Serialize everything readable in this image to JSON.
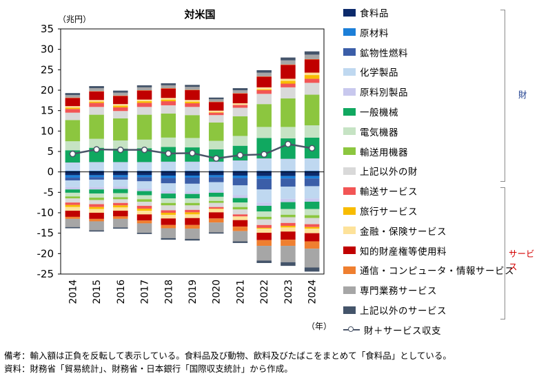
{
  "chart_data": {
    "type": "bar",
    "title": "対米国",
    "y_unit": "（兆円）",
    "x_unit": "（年）",
    "ylim": [
      -25,
      35
    ],
    "yticks": [
      35,
      30,
      25,
      20,
      15,
      10,
      5,
      0,
      -5,
      -10,
      -15,
      -20,
      -25
    ],
    "categories": [
      "2014",
      "2015",
      "2016",
      "2017",
      "2018",
      "2019",
      "2020",
      "2021",
      "2022",
      "2023",
      "2024"
    ],
    "goods_label": "財",
    "services_label": "サービス",
    "goods_color": "#1f3f8f",
    "services_color": "#d40000",
    "series": [
      {
        "name": "食料品",
        "color": "#0c2a6b",
        "group": "goods",
        "values": [
          0.1,
          0.1,
          0.1,
          0.1,
          0.1,
          0.1,
          0.1,
          0.1,
          0.1,
          0.1,
          0.1
        ],
        "neg": [
          -0.8,
          -0.8,
          -0.8,
          -0.8,
          -0.9,
          -0.9,
          -0.8,
          -0.9,
          -1.0,
          -1.0,
          -1.0
        ]
      },
      {
        "name": "原材料",
        "color": "#1c7fd8",
        "group": "goods",
        "values": [
          0.1,
          0.1,
          0.1,
          0.1,
          0.1,
          0.1,
          0.1,
          0.1,
          0.1,
          0.1,
          0.1
        ],
        "neg": [
          -0.6,
          -0.5,
          -0.5,
          -0.5,
          -0.6,
          -0.5,
          -0.5,
          -0.6,
          -0.7,
          -0.6,
          -0.6
        ]
      },
      {
        "name": "鉱物性燃料",
        "color": "#3b5ea8",
        "group": "goods",
        "values": [
          0.1,
          0.1,
          0.1,
          0.1,
          0.1,
          0.1,
          0.1,
          0.1,
          0.1,
          0.1,
          0.1
        ],
        "neg": [
          -0.7,
          -0.6,
          -0.6,
          -1.0,
          -1.3,
          -1.5,
          -1.2,
          -1.8,
          -2.6,
          -2.0,
          -1.9
        ]
      },
      {
        "name": "化学製品",
        "color": "#bfd8f0",
        "group": "goods",
        "values": [
          1.8,
          1.9,
          1.9,
          1.9,
          2.0,
          2.0,
          2.0,
          2.3,
          2.8,
          2.7,
          2.8
        ],
        "neg": [
          -1.6,
          -1.8,
          -1.7,
          -1.8,
          -1.9,
          -1.9,
          -2.0,
          -2.4,
          -3.2,
          -3.0,
          -3.0
        ]
      },
      {
        "name": "原料別製品",
        "color": "#c8c8ee",
        "group": "goods",
        "values": [
          0.2,
          0.2,
          0.2,
          0.2,
          0.2,
          0.2,
          0.2,
          0.2,
          0.2,
          0.2,
          0.2
        ],
        "neg": [
          -0.6,
          -0.6,
          -0.6,
          -0.6,
          -0.6,
          -0.6,
          -0.6,
          -0.7,
          -0.8,
          -0.8,
          -0.8
        ]
      },
      {
        "name": "一般機械",
        "color": "#10a860",
        "group": "goods",
        "values": [
          3.0,
          3.5,
          3.3,
          3.4,
          3.6,
          3.5,
          3.0,
          3.6,
          5.0,
          5.0,
          5.1
        ],
        "neg": [
          -0.8,
          -1.0,
          -1.0,
          -1.0,
          -1.2,
          -1.1,
          -1.0,
          -1.1,
          -1.4,
          -1.7,
          -1.8
        ]
      },
      {
        "name": "電気機器",
        "color": "#c6e3c4",
        "group": "goods",
        "values": [
          2.2,
          2.2,
          2.0,
          2.1,
          2.3,
          2.3,
          2.1,
          2.4,
          2.7,
          2.8,
          3.0
        ],
        "neg": [
          -0.9,
          -1.0,
          -1.0,
          -1.0,
          -1.1,
          -1.1,
          -1.0,
          -1.1,
          -1.3,
          -1.4,
          -1.5
        ]
      },
      {
        "name": "輸送用機器",
        "color": "#8cc63f",
        "group": "goods",
        "values": [
          5.2,
          5.9,
          5.4,
          6.1,
          5.9,
          5.6,
          4.5,
          4.8,
          5.6,
          7.0,
          7.5
        ],
        "neg": [
          -0.5,
          -0.6,
          -0.5,
          -0.6,
          -0.6,
          -0.6,
          -0.5,
          -0.6,
          -0.6,
          -0.6,
          -0.7
        ]
      },
      {
        "name": "上記以外の財",
        "color": "#d9d9d9",
        "group": "goods",
        "values": [
          1.8,
          1.9,
          1.8,
          1.9,
          2.0,
          2.0,
          1.8,
          2.1,
          2.5,
          2.7,
          2.9
        ],
        "neg": [
          -1.0,
          -1.0,
          -0.9,
          -1.0,
          -1.2,
          -1.1,
          -1.0,
          -1.2,
          -1.4,
          -1.4,
          -1.5
        ]
      },
      {
        "name": "輸送サービス",
        "color": "#f25555",
        "group": "services",
        "values": [
          0.9,
          1.0,
          0.9,
          1.0,
          1.0,
          0.9,
          0.6,
          0.7,
          0.9,
          0.9,
          1.0
        ],
        "neg": [
          -0.6,
          -0.7,
          -0.6,
          -0.7,
          -0.6,
          -0.6,
          -0.4,
          -0.5,
          -0.7,
          -0.7,
          -0.7
        ]
      },
      {
        "name": "旅行サービス",
        "color": "#f8bc00",
        "group": "services",
        "values": [
          0.3,
          0.3,
          0.4,
          0.4,
          0.4,
          0.4,
          0.1,
          0.0,
          0.2,
          0.7,
          0.9
        ],
        "neg": [
          -0.5,
          -0.5,
          -0.5,
          -0.5,
          -0.5,
          -0.5,
          -0.1,
          -0.0,
          -0.2,
          -0.4,
          -0.4
        ]
      },
      {
        "name": "金融・保険サービス",
        "color": "#fde29a",
        "group": "services",
        "values": [
          0.4,
          0.4,
          0.4,
          0.4,
          0.4,
          0.4,
          0.4,
          0.4,
          0.5,
          0.5,
          0.6
        ],
        "neg": [
          -0.9,
          -0.9,
          -0.8,
          -0.9,
          -0.9,
          -0.9,
          -0.8,
          -0.9,
          -1.0,
          -1.0,
          -1.1
        ]
      },
      {
        "name": "知的財産権等使用料",
        "color": "#c00000",
        "group": "services",
        "values": [
          2.0,
          2.1,
          2.0,
          2.2,
          2.3,
          2.4,
          2.1,
          2.4,
          2.6,
          3.4,
          3.2
        ],
        "neg": [
          -1.5,
          -1.5,
          -1.4,
          -1.5,
          -1.6,
          -1.7,
          -1.5,
          -1.6,
          -1.8,
          -2.0,
          -2.0
        ]
      },
      {
        "name": "通信・コンピュータ・情報サービス",
        "color": "#ef7f30",
        "group": "services",
        "values": [
          0.1,
          0.1,
          0.1,
          0.1,
          0.1,
          0.1,
          0.1,
          0.1,
          0.1,
          0.1,
          0.1
        ],
        "neg": [
          -0.5,
          -0.6,
          -0.6,
          -0.7,
          -0.8,
          -0.9,
          -1.0,
          -1.1,
          -1.4,
          -1.5,
          -1.8
        ]
      },
      {
        "name": "専門業務サービス",
        "color": "#a6a6a6",
        "group": "services",
        "values": [
          0.6,
          0.7,
          0.7,
          0.7,
          0.7,
          0.7,
          0.6,
          0.7,
          0.9,
          1.0,
          1.1
        ],
        "neg": [
          -2.0,
          -2.2,
          -2.1,
          -2.3,
          -2.4,
          -2.5,
          -2.4,
          -2.5,
          -3.6,
          -4.0,
          -4.6
        ]
      },
      {
        "name": "上記以外のサービス",
        "color": "#44546a",
        "group": "services",
        "values": [
          0.5,
          0.5,
          0.5,
          0.5,
          0.5,
          0.5,
          0.4,
          0.5,
          0.6,
          0.7,
          0.8
        ],
        "neg": [
          -0.3,
          -0.3,
          -0.3,
          -0.3,
          -0.4,
          -0.4,
          -0.3,
          -0.4,
          -0.6,
          -0.9,
          -1.0
        ]
      }
    ],
    "line": {
      "name": "財＋サービス収支",
      "color": "#4a5568",
      "values": [
        4.4,
        5.5,
        5.4,
        5.4,
        4.5,
        4.6,
        3.3,
        4.1,
        4.3,
        6.8,
        5.8
      ]
    }
  },
  "notes": {
    "line1": "備考：輸入額は正負を反転して表示している。食料品及び動物、飲料及びたばこをまとめて「食料品」としている。",
    "line2": "資料：財務省「貿易統計」、財務省・日本銀行「国際収支統計」から作成。"
  }
}
